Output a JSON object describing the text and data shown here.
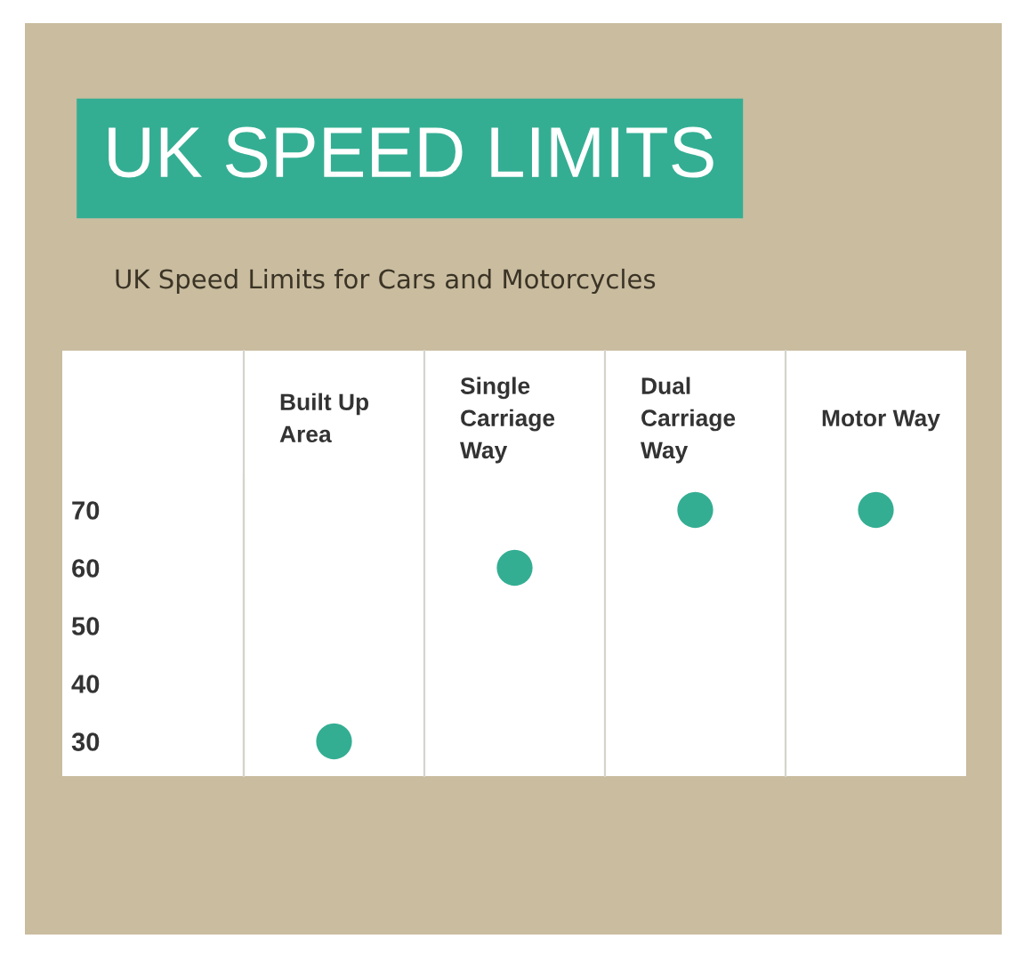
{
  "chart_data": {
    "type": "scatter",
    "title": "UK SPEED LIMITS",
    "subtitle": "UK Speed Limits for Cars and Motorcycles",
    "categories": [
      "Built Up Area",
      "Single Carriage Way",
      "Dual Carriage Way",
      "Motor Way"
    ],
    "values": [
      30,
      60,
      70,
      70
    ],
    "color": "#34ae93",
    "marker": "circle",
    "ylim": [
      24,
      76
    ],
    "yticks": [
      30,
      40,
      50,
      60,
      70
    ]
  }
}
